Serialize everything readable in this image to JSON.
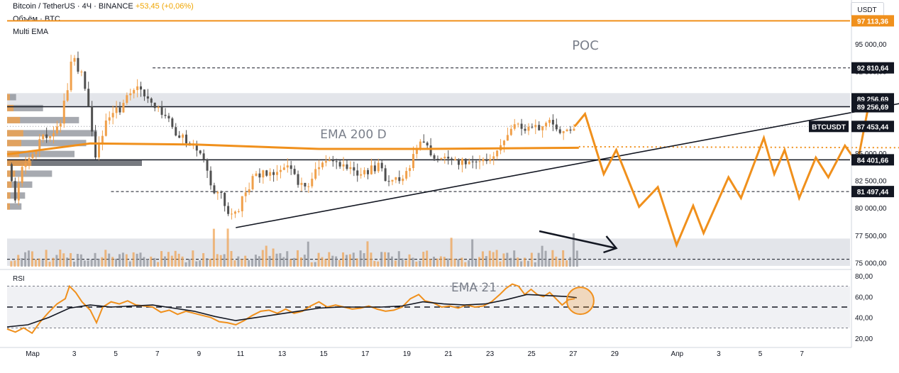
{
  "header": {
    "symbol_line": "Bitcoin / TetherUS · 4Ч · BINANCE",
    "change": "+53,45 (+0,06%)",
    "volume_label": "Объём · BTC",
    "indicator_label": "Multi EMA"
  },
  "currency_label": "USDT",
  "rsi_label": "RSI",
  "annotations": {
    "poc": "POC",
    "ema200": "EMA 200 D",
    "ema21": "EMA 21"
  },
  "colors": {
    "orange": "#f0901c",
    "black": "#131722",
    "candle_up": "#f0a04b",
    "candle_down": "#505050",
    "zone": "#e3e5ea",
    "profile": "#8a8e96"
  },
  "chart_data": [
    {
      "type": "candlestick",
      "title": "Bitcoin / TetherUS · 4Ч · BINANCE",
      "ylim": [
        74500,
        98500
      ],
      "y_ticks": [
        75000,
        77500,
        80000,
        82500,
        85000,
        87500,
        90000,
        92500,
        95000
      ],
      "y_tick_labels": [
        "75 000,00",
        "77 500,00",
        "80 000,00",
        "82 500,00",
        "85 000,00",
        "87 500,00",
        "90 000,00",
        "92 500,00",
        "95 000,00"
      ],
      "x_ticks": [
        "Мар",
        "3",
        "5",
        "7",
        "9",
        "11",
        "13",
        "15",
        "17",
        "19",
        "21",
        "23",
        "25",
        "27",
        "29",
        "Апр",
        "3",
        "5",
        "7"
      ],
      "x_tick_days": [
        1,
        3,
        5,
        7,
        9,
        11,
        13,
        15,
        17,
        19,
        21,
        23,
        25,
        27,
        29,
        32,
        34,
        36,
        38
      ],
      "price_labels": [
        {
          "value": "97 113,36",
          "price": 97113.36,
          "style": "orange"
        },
        {
          "value": "92 810,64",
          "price": 92810.64,
          "style": "black"
        },
        {
          "value": "89 256,69",
          "price": 89980,
          "style": "black"
        },
        {
          "value": "89 256,69",
          "price": 89256.69,
          "style": "black"
        },
        {
          "value": "87 453,44",
          "price": 87453.44,
          "style": "black",
          "tag": "BTCUSDT"
        },
        {
          "value": "84 401,66",
          "price": 84401.66,
          "style": "black"
        },
        {
          "value": "81 497,44",
          "price": 81497.44,
          "style": "black"
        }
      ],
      "close_path": [
        [
          0.0,
          84000
        ],
        [
          0.3,
          80500
        ],
        [
          0.6,
          83500
        ],
        [
          1.0,
          84800
        ],
        [
          1.4,
          85600
        ],
        [
          1.7,
          86400
        ],
        [
          2.1,
          86900
        ],
        [
          2.5,
          87600
        ],
        [
          2.9,
          91500
        ],
        [
          3.1,
          94000
        ],
        [
          3.3,
          93000
        ],
        [
          3.6,
          91800
        ],
        [
          3.9,
          88500
        ],
        [
          4.2,
          84500
        ],
        [
          4.5,
          86800
        ],
        [
          4.8,
          88000
        ],
        [
          5.1,
          88600
        ],
        [
          5.5,
          89300
        ],
        [
          5.9,
          90700
        ],
        [
          6.2,
          91300
        ],
        [
          6.6,
          90200
        ],
        [
          6.9,
          89200
        ],
        [
          7.3,
          88700
        ],
        [
          7.7,
          87900
        ],
        [
          8.1,
          86700
        ],
        [
          8.6,
          86100
        ],
        [
          9.0,
          85900
        ],
        [
          9.4,
          84600
        ],
        [
          9.7,
          82600
        ],
        [
          10.0,
          81200
        ],
        [
          10.3,
          80900
        ],
        [
          10.6,
          79700
        ],
        [
          10.9,
          79300
        ],
        [
          11.2,
          80600
        ],
        [
          11.5,
          81600
        ],
        [
          11.8,
          82800
        ],
        [
          12.2,
          83200
        ],
        [
          12.6,
          82900
        ],
        [
          13.0,
          83800
        ],
        [
          13.4,
          84100
        ],
        [
          13.8,
          82600
        ],
        [
          14.2,
          81900
        ],
        [
          14.6,
          82700
        ],
        [
          15.0,
          83900
        ],
        [
          15.4,
          84300
        ],
        [
          15.8,
          84100
        ],
        [
          16.2,
          84000
        ],
        [
          16.6,
          83600
        ],
        [
          17.0,
          83200
        ],
        [
          17.4,
          83400
        ],
        [
          17.8,
          83700
        ],
        [
          18.2,
          82700
        ],
        [
          18.6,
          82400
        ],
        [
          19.0,
          83100
        ],
        [
          19.4,
          84200
        ],
        [
          19.8,
          86200
        ],
        [
          20.1,
          85600
        ],
        [
          20.4,
          84900
        ],
        [
          20.8,
          84300
        ],
        [
          21.2,
          84400
        ],
        [
          21.6,
          84100
        ],
        [
          22.0,
          84200
        ],
        [
          22.4,
          84400
        ],
        [
          22.8,
          84300
        ],
        [
          23.2,
          84600
        ],
        [
          23.6,
          85700
        ],
        [
          24.0,
          86500
        ],
        [
          24.3,
          87300
        ],
        [
          24.6,
          87800
        ],
        [
          24.9,
          86800
        ],
        [
          25.2,
          87600
        ],
        [
          25.5,
          87300
        ],
        [
          25.8,
          87900
        ],
        [
          26.1,
          88000
        ],
        [
          26.4,
          87400
        ],
        [
          26.7,
          86600
        ],
        [
          27.0,
          87200
        ],
        [
          27.3,
          87500
        ]
      ],
      "forecast_path": [
        [
          27.3,
          87453
        ],
        [
          27.8,
          88600
        ],
        [
          28.7,
          83100
        ],
        [
          29.3,
          85300
        ],
        [
          30.4,
          80100
        ],
        [
          31.3,
          81900
        ],
        [
          32.2,
          76600
        ],
        [
          33.0,
          80200
        ],
        [
          33.5,
          77700
        ],
        [
          34.7,
          82800
        ],
        [
          35.3,
          80900
        ],
        [
          36.4,
          86400
        ],
        [
          36.9,
          83100
        ],
        [
          37.4,
          85300
        ],
        [
          38.1,
          80900
        ],
        [
          38.9,
          84600
        ],
        [
          39.5,
          82800
        ],
        [
          40.3,
          85700
        ],
        [
          40.9,
          84100
        ],
        [
          41.4,
          89000
        ],
        [
          41.9,
          89700
        ],
        [
          42.4,
          89200
        ]
      ],
      "ema200_points": [
        [
          0.0,
          84900
        ],
        [
          4.0,
          85900
        ],
        [
          9.0,
          85800
        ],
        [
          15.0,
          85400
        ],
        [
          20.0,
          85400
        ],
        [
          27.5,
          85500
        ]
      ],
      "ema200_projection": [
        [
          27.5,
          85600
        ],
        [
          44.2,
          85500
        ]
      ],
      "trendline": [
        [
          11.0,
          78200
        ],
        [
          44.2,
          90000
        ]
      ],
      "levels": [
        {
          "price": 97113.36,
          "style": "orange-solid",
          "from_day": 0.0
        },
        {
          "price": 92810.64,
          "style": "dashed",
          "from_day": 7.0
        },
        {
          "price": 89256.69,
          "style": "solid",
          "from_day": 0.0
        },
        {
          "price": 87453.44,
          "style": "dotted",
          "from_day": 0.0
        },
        {
          "price": 84401.66,
          "style": "solid",
          "from_day": 0.0
        },
        {
          "price": 81497.44,
          "style": "dashed",
          "from_day": 5.0
        },
        {
          "price": 75300,
          "style": "dashed",
          "from_day": 0.0
        }
      ],
      "zones": [
        {
          "from": 89256.69,
          "to": 90500
        },
        {
          "from": 74700,
          "to": 77200
        }
      ],
      "volume_profile": [
        {
          "price": 90100,
          "size": 0.1
        },
        {
          "price": 89100,
          "size": 0.4
        },
        {
          "price": 88000,
          "size": 0.8
        },
        {
          "price": 86800,
          "size": 1.0
        },
        {
          "price": 85900,
          "size": 0.88
        },
        {
          "price": 84900,
          "size": 0.75
        },
        {
          "price": 84100,
          "size": 1.5
        },
        {
          "price": 83100,
          "size": 0.5
        },
        {
          "price": 82100,
          "size": 0.28
        },
        {
          "price": 81100,
          "size": 0.2
        },
        {
          "price": 80100,
          "size": 0.16
        }
      ],
      "volume_max_fraction": 0.3
    },
    {
      "type": "line",
      "title": "RSI",
      "ylim": [
        14,
        86
      ],
      "y_ticks": [
        20,
        40,
        60,
        80
      ],
      "y_tick_labels": [
        "20,00",
        "40,00",
        "60,00",
        "80,00"
      ],
      "band": [
        30,
        70
      ],
      "midline": 50,
      "series": [
        {
          "name": "RSI",
          "color": "#f0901c",
          "points": [
            [
              0.0,
              29
            ],
            [
              0.4,
              26
            ],
            [
              0.8,
              30
            ],
            [
              1.2,
              25
            ],
            [
              1.6,
              36
            ],
            [
              2.0,
              45
            ],
            [
              2.4,
              53
            ],
            [
              2.8,
              58
            ],
            [
              3.0,
              70
            ],
            [
              3.3,
              64
            ],
            [
              3.6,
              55
            ],
            [
              4.0,
              47
            ],
            [
              4.3,
              35
            ],
            [
              4.6,
              50
            ],
            [
              5.0,
              55
            ],
            [
              5.4,
              53
            ],
            [
              5.8,
              56
            ],
            [
              6.2,
              52
            ],
            [
              6.6,
              51
            ],
            [
              7.0,
              50
            ],
            [
              7.4,
              45
            ],
            [
              7.8,
              47
            ],
            [
              8.2,
              43
            ],
            [
              8.6,
              46
            ],
            [
              9.0,
              44
            ],
            [
              9.4,
              42
            ],
            [
              9.8,
              40
            ],
            [
              10.2,
              36
            ],
            [
              10.6,
              35
            ],
            [
              11.0,
              33
            ],
            [
              11.4,
              37
            ],
            [
              11.8,
              42
            ],
            [
              12.2,
              46
            ],
            [
              12.6,
              47
            ],
            [
              13.0,
              44
            ],
            [
              13.4,
              48
            ],
            [
              13.8,
              44
            ],
            [
              14.2,
              46
            ],
            [
              14.6,
              51
            ],
            [
              15.0,
              55
            ],
            [
              15.4,
              50
            ],
            [
              15.8,
              52
            ],
            [
              16.2,
              50
            ],
            [
              16.6,
              48
            ],
            [
              17.0,
              49
            ],
            [
              17.4,
              51
            ],
            [
              17.8,
              48
            ],
            [
              18.2,
              46
            ],
            [
              18.6,
              47
            ],
            [
              19.0,
              50
            ],
            [
              19.4,
              58
            ],
            [
              19.8,
              62
            ],
            [
              20.1,
              56
            ],
            [
              20.5,
              54
            ],
            [
              20.9,
              50
            ],
            [
              21.3,
              51
            ],
            [
              21.7,
              49
            ],
            [
              22.1,
              52
            ],
            [
              22.5,
              50
            ],
            [
              22.9,
              51
            ],
            [
              23.3,
              55
            ],
            [
              23.7,
              62
            ],
            [
              24.0,
              68
            ],
            [
              24.3,
              72
            ],
            [
              24.6,
              70
            ],
            [
              24.9,
              62
            ],
            [
              25.2,
              67
            ],
            [
              25.5,
              62
            ],
            [
              25.8,
              60
            ],
            [
              26.1,
              64
            ],
            [
              26.4,
              58
            ],
            [
              26.7,
              52
            ],
            [
              27.0,
              57
            ],
            [
              27.3,
              58
            ]
          ]
        },
        {
          "name": "EMA 21",
          "color": "#131722",
          "points": [
            [
              0.0,
              31
            ],
            [
              1.0,
              33
            ],
            [
              2.0,
              40
            ],
            [
              3.0,
              49
            ],
            [
              4.0,
              52
            ],
            [
              5.0,
              50
            ],
            [
              6.0,
              51
            ],
            [
              7.0,
              52
            ],
            [
              8.0,
              49
            ],
            [
              9.0,
              46
            ],
            [
              10.0,
              41
            ],
            [
              11.0,
              37
            ],
            [
              12.0,
              40
            ],
            [
              13.0,
              43
            ],
            [
              14.0,
              46
            ],
            [
              15.0,
              49
            ],
            [
              16.0,
              50
            ],
            [
              17.0,
              50
            ],
            [
              18.0,
              50
            ],
            [
              19.0,
              51
            ],
            [
              20.0,
              55
            ],
            [
              21.0,
              53
            ],
            [
              22.0,
              52
            ],
            [
              23.0,
              53
            ],
            [
              24.0,
              57
            ],
            [
              25.0,
              62
            ],
            [
              26.0,
              61
            ],
            [
              27.0,
              60
            ],
            [
              27.4,
              59
            ]
          ]
        }
      ]
    }
  ]
}
